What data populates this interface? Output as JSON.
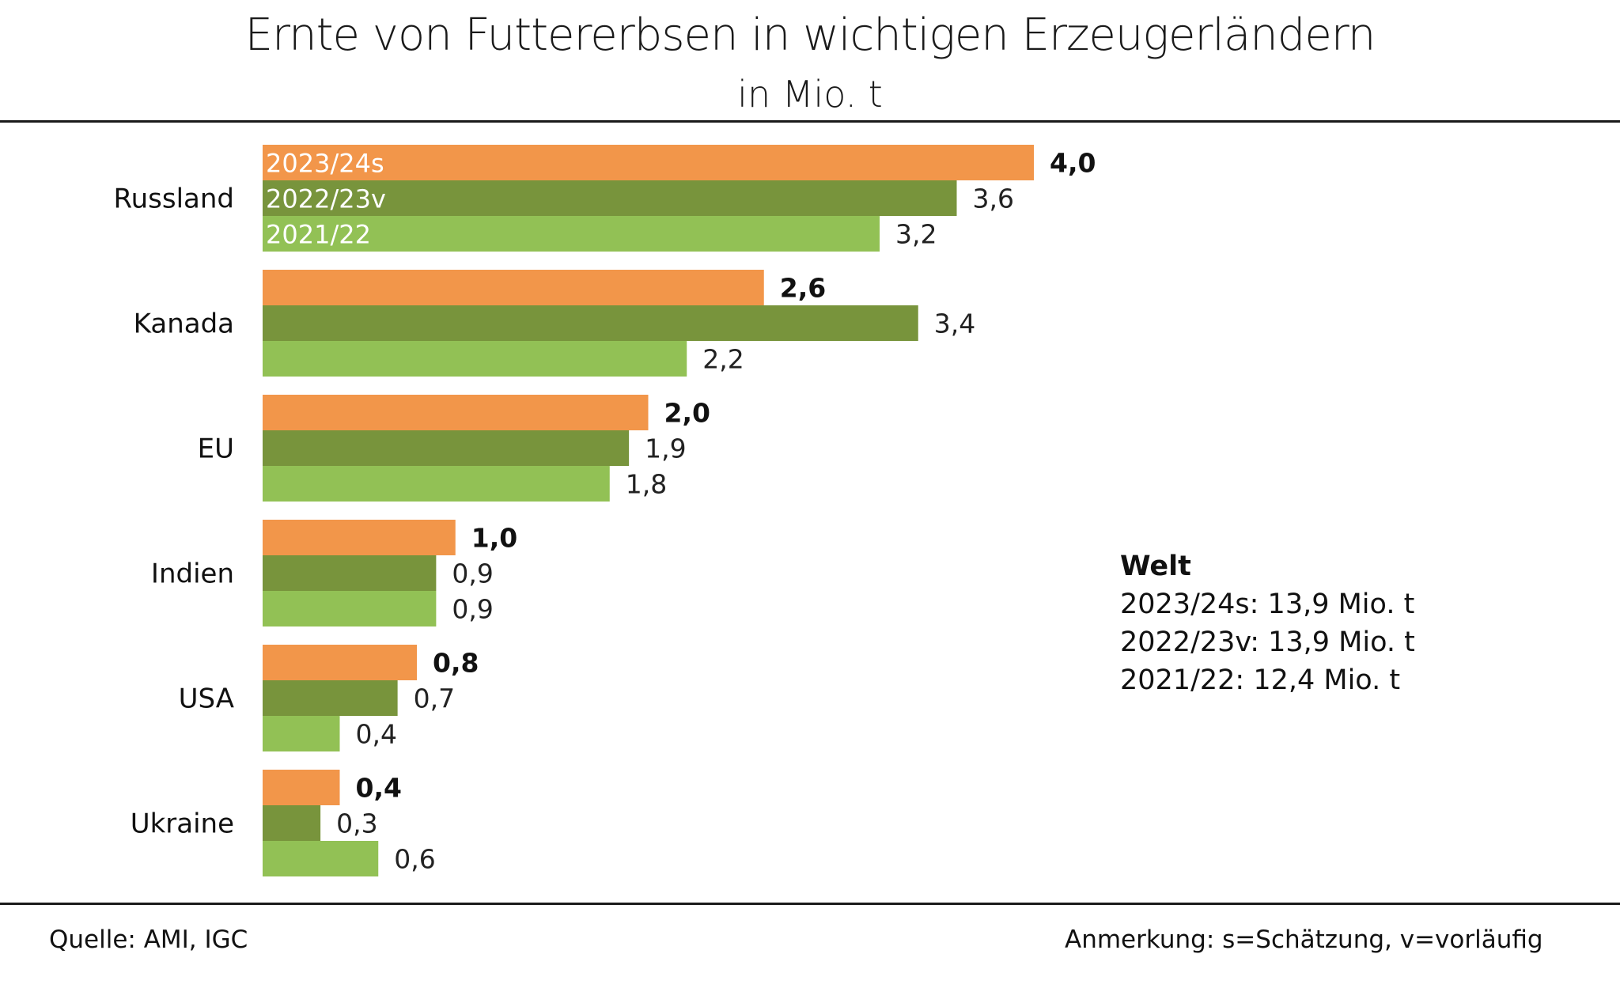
{
  "header": {
    "title": "Ernte von Futtererbsen in wichtigen Erzeugerländern",
    "subtitle": "in Mio. t"
  },
  "chart_data": {
    "type": "bar",
    "orientation": "horizontal",
    "title": "Ernte von Futtererbsen in wichtigen Erzeugerländern",
    "subtitle": "in Mio. t",
    "xlabel": "",
    "ylabel": "",
    "xlim": [
      0,
      4.0
    ],
    "grid": false,
    "legend": "inside-first-group-bars",
    "categories": [
      "Russland",
      "Kanada",
      "EU",
      "Indien",
      "USA",
      "Ukraine"
    ],
    "series": [
      {
        "name": "2023/24s",
        "color": "#F2964A",
        "values": [
          4.0,
          2.6,
          2.0,
          1.0,
          0.8,
          0.4
        ],
        "labels": [
          "4,0",
          "2,6",
          "2,0",
          "1,0",
          "0,8",
          "0,4"
        ],
        "label_bold": true
      },
      {
        "name": "2022/23v",
        "color": "#78943C",
        "values": [
          3.6,
          3.4,
          1.9,
          0.9,
          0.7,
          0.3
        ],
        "labels": [
          "3,6",
          "3,4",
          "1,9",
          "0,9",
          "0,7",
          "0,3"
        ],
        "label_bold": false
      },
      {
        "name": "2021/22",
        "color": "#92C155",
        "values": [
          3.2,
          2.2,
          1.8,
          0.9,
          0.4,
          0.6
        ],
        "labels": [
          "3,2",
          "2,2",
          "1,8",
          "0,9",
          "0,4",
          "0,6"
        ],
        "label_bold": false
      }
    ],
    "annotation": {
      "heading": "Welt",
      "lines": [
        "2023/24s: 13,9 Mio. t",
        "2022/23v: 13,9 Mio. t",
        "2021/22: 12,4 Mio. t"
      ]
    }
  },
  "footer": {
    "source": "Quelle:  AMI, IGC",
    "note": "Anmerkung: s=Schätzung, v=vorläufig"
  }
}
